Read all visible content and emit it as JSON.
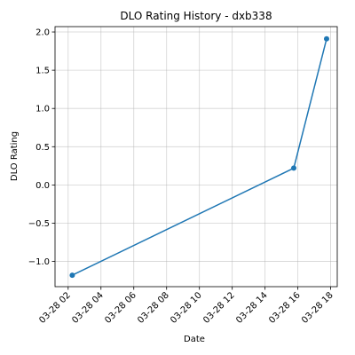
{
  "chart_data": {
    "type": "line",
    "title": "DLO Rating History - dxb338",
    "xlabel": "Date",
    "ylabel": "DLO Rating",
    "x_ticks": [
      "03-28 02",
      "03-28 04",
      "03-28 06",
      "03-28 08",
      "03-28 10",
      "03-28 12",
      "03-28 14",
      "03-28 16",
      "03-28 18"
    ],
    "y_ticks": [
      "−1.0",
      "−0.5",
      "0.0",
      "0.5",
      "1.0",
      "1.5",
      "2.0"
    ],
    "x_tick_hours": [
      2,
      4,
      6,
      8,
      10,
      12,
      14,
      16,
      18
    ],
    "y_tick_values": [
      -1.0,
      -0.5,
      0.0,
      0.5,
      1.0,
      1.5,
      2.0
    ],
    "xlim_hours": [
      1.2,
      18.4
    ],
    "ylim": [
      -1.33,
      2.07
    ],
    "grid": true,
    "series": [
      {
        "color": "#1f77b4",
        "points": [
          {
            "x": "03-28 02:15",
            "y": -1.18
          },
          {
            "x": "03-28 15:45",
            "y": 0.22
          },
          {
            "x": "03-28 17:45",
            "y": 1.91
          }
        ],
        "x_hours": [
          2.25,
          15.75,
          17.75
        ]
      }
    ]
  }
}
